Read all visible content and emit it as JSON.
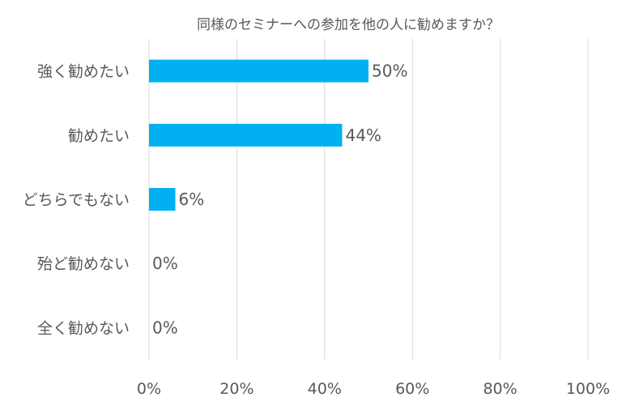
{
  "chart_data": {
    "type": "bar",
    "orientation": "horizontal",
    "title": "同様のセミナーへの参加を他の人に勧めますか？",
    "categories": [
      "強く勧めたい",
      "勧めたい",
      "どちらでもない",
      "殆ど勧めない",
      "全く勧めない"
    ],
    "values": [
      50,
      44,
      6,
      0,
      0
    ],
    "value_labels": [
      "50%",
      "44%",
      "6%",
      "0%",
      "0%"
    ],
    "xlim": [
      0,
      100
    ],
    "xticks": [
      0,
      20,
      40,
      60,
      80,
      100
    ],
    "xtick_labels": [
      "0%",
      "20%",
      "40%",
      "60%",
      "80%",
      "100%"
    ],
    "xlabel": "",
    "ylabel": "",
    "grid": "vertical",
    "legend": "none",
    "bar_color": "#00B0F0",
    "gridline_color": "#D9D9D9",
    "text_color": "#595959"
  }
}
